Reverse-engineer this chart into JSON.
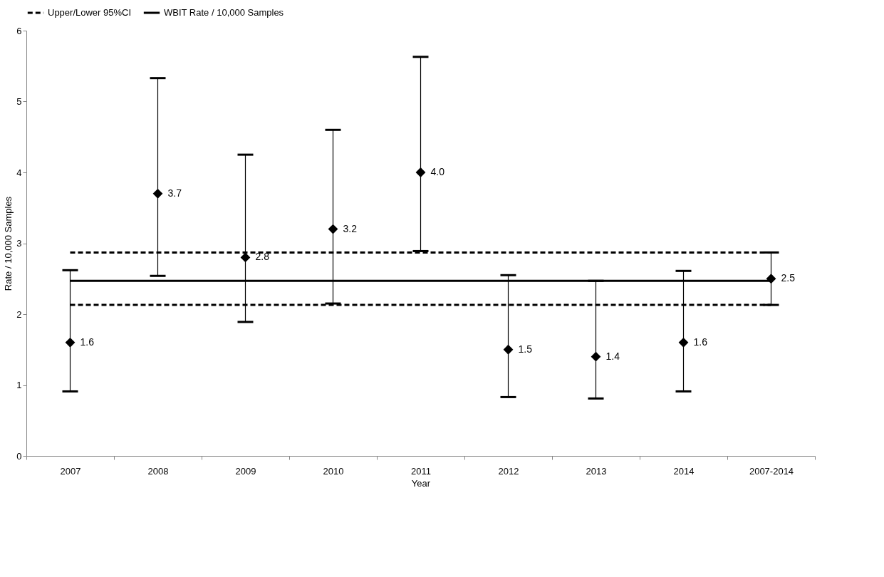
{
  "chart_data": {
    "type": "scatter",
    "xlabel": "Year",
    "ylabel": "Rate / 10,000 Samples",
    "categories": [
      "2007",
      "2008",
      "2009",
      "2010",
      "2011",
      "2012",
      "2013",
      "2014",
      "2007-2014"
    ],
    "series": [
      {
        "color": "#000000",
        "values": [
          1.6,
          3.7,
          2.8,
          3.2,
          4.0,
          1.5,
          1.4,
          1.6,
          2.5
        ],
        "value_labels": [
          "1.6",
          "3.7",
          "2.8",
          "3.2",
          "4.0",
          "1.5",
          "1.4",
          "1.6",
          "2.5"
        ],
        "errors": [
          [
            0.91,
            2.62
          ],
          [
            2.54,
            5.33
          ],
          [
            1.89,
            4.25
          ],
          [
            2.15,
            4.6
          ],
          [
            2.89,
            5.63
          ],
          [
            0.83,
            2.55
          ],
          [
            0.81,
            2.47
          ],
          [
            0.91,
            2.61
          ],
          [
            2.13,
            2.87
          ]
        ]
      }
    ],
    "ref_lines": [
      {
        "axis": "y",
        "value": 2.87,
        "label": "Upper/Lower 95%CI",
        "line_style": "dashed",
        "color": "#000000"
      },
      {
        "axis": "y",
        "value": 2.13,
        "label": null,
        "line_style": "dashed",
        "color": "#000000"
      },
      {
        "axis": "y",
        "value": 2.47,
        "label": "WBIT Rate / 10,000 Samples",
        "line_style": "solid",
        "color": "#000000"
      }
    ],
    "ylim": [
      0,
      6
    ],
    "yticks": [
      0,
      1,
      2,
      3,
      4,
      5,
      6
    ],
    "marker": "diamond",
    "grid": false,
    "legend": "top"
  }
}
